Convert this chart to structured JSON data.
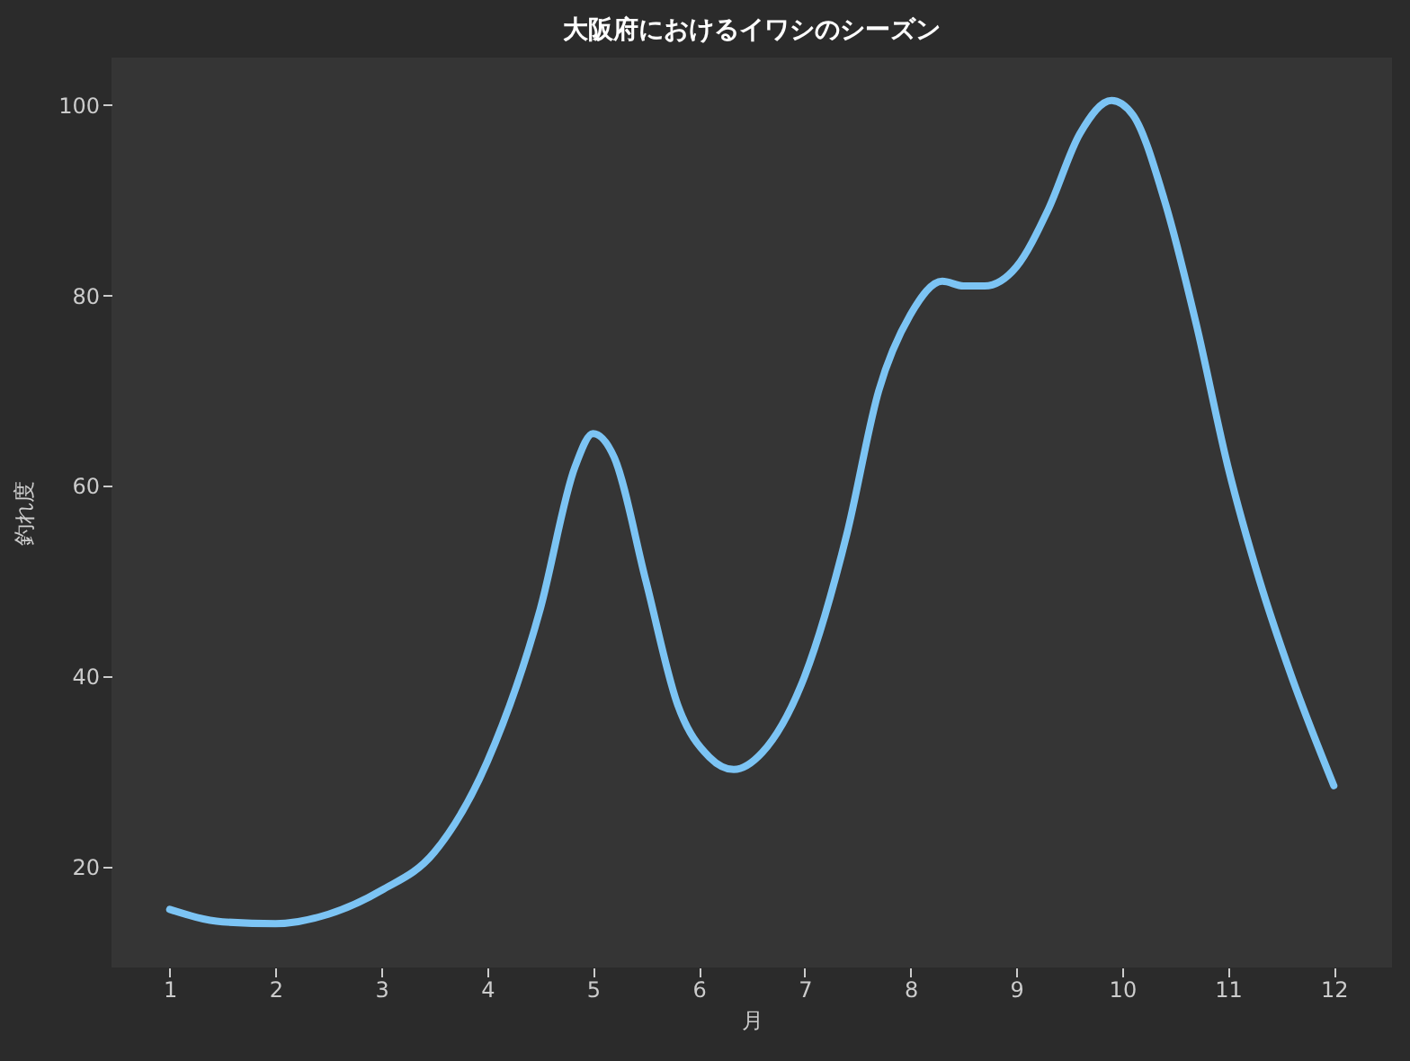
{
  "chart_data": {
    "type": "line",
    "title": "大阪府におけるイワシのシーズン",
    "xlabel": "月",
    "ylabel": "釣れ度",
    "x": [
      1,
      1.5,
      2,
      2.5,
      3,
      3.5,
      4,
      4.5,
      4.83,
      5,
      5.2,
      5.5,
      5.8,
      6.1,
      6.33,
      6.6,
      7,
      7.4,
      7.7,
      8,
      8.3,
      8.5,
      8.7,
      9,
      9.3,
      9.6,
      9.9,
      10.1,
      10.4,
      10.7,
      11,
      11.3,
      11.6,
      12
    ],
    "series": [
      {
        "color": "#7cc4f4",
        "values": [
          15.5,
          14.2,
          14,
          15,
          17.5,
          21.5,
          31,
          47,
          62,
          65.5,
          63,
          50,
          37,
          31.5,
          30.2,
          32,
          40,
          55,
          70,
          78,
          81.5,
          81,
          81,
          83,
          89,
          97,
          100.5,
          99,
          90,
          77,
          62,
          50,
          40,
          28.5
        ]
      }
    ],
    "xlim": [
      0.45,
      12.55
    ],
    "ylim": [
      9.4,
      105
    ],
    "xticks": [
      1,
      2,
      3,
      4,
      5,
      6,
      7,
      8,
      9,
      10,
      11,
      12
    ],
    "yticks": [
      20,
      40,
      60,
      80,
      100
    ],
    "grid": false,
    "legend": false,
    "marker": "none",
    "line_style": "solid"
  }
}
